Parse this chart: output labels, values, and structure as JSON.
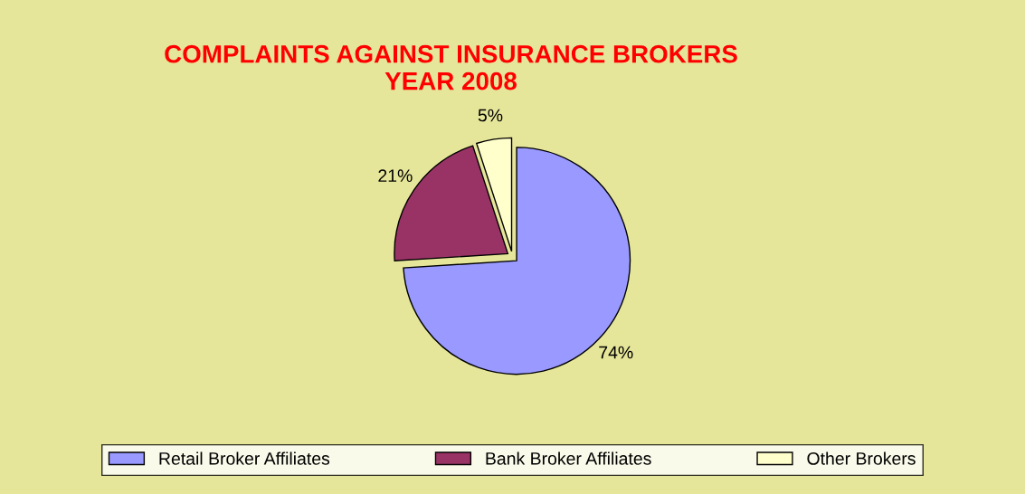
{
  "chart_data": {
    "type": "pie",
    "title": "COMPLAINTS AGAINST INSURANCE BROKERS\nYEAR 2008",
    "categories": [
      "Retail Broker Affiliates",
      "Bank Broker Affiliates",
      "Other Brokers"
    ],
    "values": [
      74,
      21,
      5
    ],
    "colors": [
      "#9999ff",
      "#993366",
      "#ffffcc"
    ],
    "value_labels": [
      "74%",
      "21%",
      "5%"
    ],
    "legend": "bottom"
  }
}
